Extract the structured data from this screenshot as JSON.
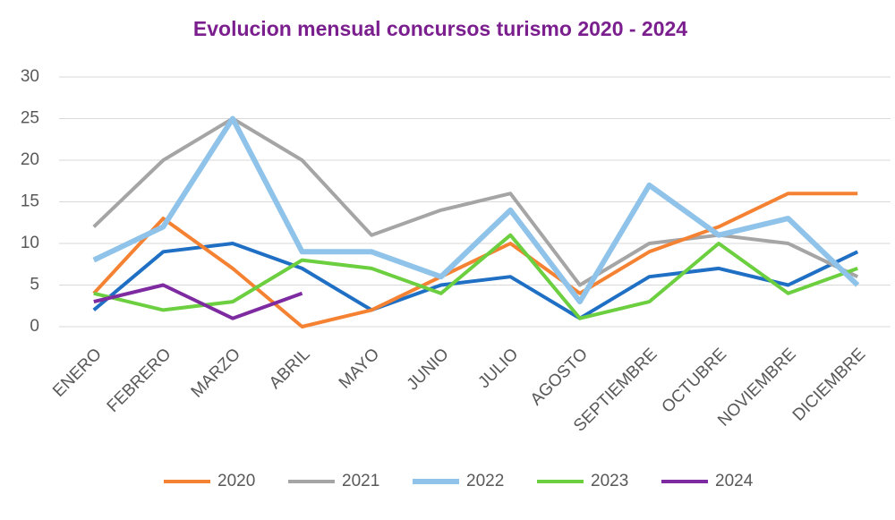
{
  "chart_data": {
    "type": "line",
    "title": "Evolucion mensual concursos turismo 2020 - 2024",
    "categories": [
      "ENERO",
      "FEBRERO",
      "MARZO",
      "ABRIL",
      "MAYO",
      "JUNIO",
      "JULIO",
      "AGOSTO",
      "SEPTIEMBRE",
      "OCTUBRE",
      "NOVIEMBRE",
      "DICIEMBRE"
    ],
    "series": [
      {
        "color": "#1f6fc4",
        "values": [
          2,
          9,
          10,
          7,
          2,
          5,
          6,
          1,
          6,
          7,
          5,
          9
        ]
      },
      {
        "name": "2021",
        "color": "#a5a5a5",
        "values": [
          12,
          20,
          25,
          20,
          11,
          14,
          16,
          5,
          10,
          11,
          10,
          6
        ]
      },
      {
        "name": "2020",
        "color": "#f58232",
        "values": [
          4,
          13,
          7,
          0,
          2,
          6,
          10,
          4,
          9,
          12,
          16,
          16
        ]
      },
      {
        "name": "2023",
        "color": "#6ccf3f",
        "values": [
          4,
          2,
          3,
          8,
          7,
          4,
          11,
          1,
          3,
          10,
          4,
          7
        ]
      },
      {
        "name": "2022",
        "color": "#8fc3ea",
        "values": [
          8,
          12,
          25,
          9,
          9,
          6,
          14,
          3,
          17,
          11,
          13,
          5
        ]
      },
      {
        "name": "2024",
        "color": "#7e2aa0",
        "values": [
          3,
          5,
          1,
          4,
          null,
          null,
          null,
          null,
          null,
          null,
          null,
          null
        ]
      }
    ],
    "legend_order": [
      "2020",
      "2021",
      "2022",
      "2023",
      "2024"
    ],
    "ylim": [
      0,
      30
    ],
    "yticks": [
      0,
      5,
      10,
      15,
      20,
      25,
      30
    ],
    "grid": true,
    "legend": "bottom"
  }
}
